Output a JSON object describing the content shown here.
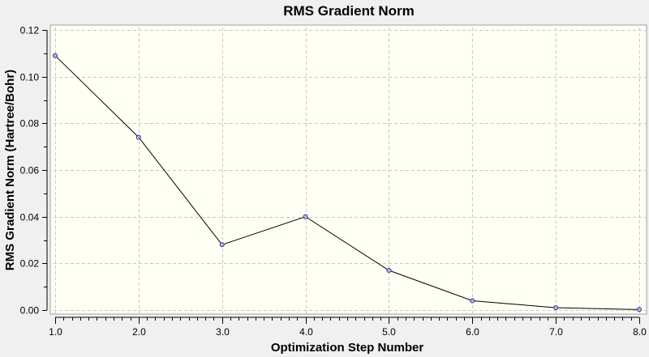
{
  "chart_data": {
    "type": "line",
    "title": "RMS Gradient Norm",
    "xlabel": "Optimization Step Number",
    "ylabel": "RMS Gradient Norm (Hartree/Bohr)",
    "x": [
      1,
      2,
      3,
      4,
      5,
      6,
      7,
      8
    ],
    "values": [
      0.109,
      0.074,
      0.028,
      0.04,
      0.017,
      0.004,
      0.001,
      0.0002
    ],
    "xlim": [
      1.0,
      8.0
    ],
    "ylim": [
      0.0,
      0.12
    ],
    "xticks": [
      "1.0",
      "2.0",
      "3.0",
      "4.0",
      "5.0",
      "6.0",
      "7.0",
      "8.0"
    ],
    "yticks": [
      "0.00",
      "0.02",
      "0.04",
      "0.06",
      "0.08",
      "0.10",
      "0.12"
    ],
    "grid": true,
    "legend": null
  },
  "colors": {
    "background": "#f0f0f0",
    "plot_background": "#fffff4",
    "grid": "#c8c8c8",
    "line": "#000000",
    "marker_stroke": "#2a2a9a",
    "marker_fill": "#b8b8e8"
  }
}
